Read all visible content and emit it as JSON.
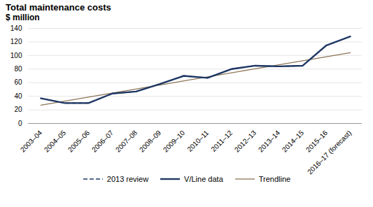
{
  "chart_data": {
    "type": "line",
    "title": "Total maintenance costs",
    "subtitle": "$ million",
    "categories": [
      "2003–04",
      "2004–05",
      "2005–06",
      "2006–07",
      "2007–08",
      "2008–09",
      "2009–10",
      "2010–11",
      "2011–12",
      "2012–13",
      "2013–14",
      "2014–15",
      "2015–16",
      "2016–17 (forecast)"
    ],
    "series": [
      {
        "name": "2013 review",
        "color": "#1f3864",
        "line_style": "dashed",
        "values": [
          37,
          30,
          30,
          44,
          47,
          58,
          70,
          67,
          80,
          85,
          84,
          85,
          null,
          null
        ]
      },
      {
        "name": "V/Line data",
        "color": "#1f3864",
        "line_style": "solid",
        "values": [
          37,
          30,
          30,
          44,
          47,
          58,
          70,
          67,
          80,
          85,
          84,
          85,
          115,
          128
        ]
      },
      {
        "name": "Trendline",
        "color": "#8b7355",
        "line_style": "solid",
        "x": [
          "2003–04",
          "2016–17 (forecast)"
        ],
        "values": [
          27,
          104
        ]
      }
    ],
    "ylim": [
      0,
      140
    ],
    "yticks": [
      0,
      20,
      40,
      60,
      80,
      100,
      120,
      140
    ],
    "grid": true,
    "legend": "bottom"
  }
}
